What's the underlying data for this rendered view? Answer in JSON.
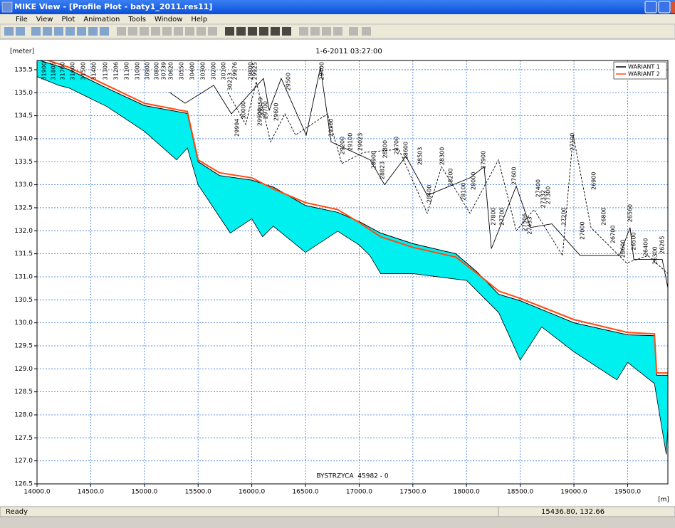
{
  "window": {
    "title": "MIKE View - [Profile Plot - baty1_2011.res11]",
    "menu": [
      "File",
      "View",
      "Plot",
      "Animation",
      "Tools",
      "Window",
      "Help"
    ],
    "status": "Ready",
    "coords": "15436.80, 132.66"
  },
  "chart_data": {
    "type": "line",
    "title": "1-6-2011 03:27:00",
    "ylabel": "[meter]",
    "xlabel": "[m]",
    "annotation": "BYSTRZYCA  45982 - 0",
    "xlim": [
      14000,
      19875
    ],
    "ylim": [
      126.5,
      135.7
    ],
    "xticks": [
      {
        "value": 14000,
        "label": "14000.0"
      },
      {
        "value": 14500,
        "label": "14500.0"
      },
      {
        "value": 15000,
        "label": "15000.0"
      },
      {
        "value": 15500,
        "label": "15500.0"
      },
      {
        "value": 16000,
        "label": "16000.0"
      },
      {
        "value": 16500,
        "label": "16500.0"
      },
      {
        "value": 17000,
        "label": "17000.0"
      },
      {
        "value": 17500,
        "label": "17500.0"
      },
      {
        "value": 18000,
        "label": "18000.0"
      },
      {
        "value": 18500,
        "label": "18500.0"
      },
      {
        "value": 19000,
        "label": "19000.0"
      },
      {
        "value": 19500,
        "label": "19500.0"
      }
    ],
    "yticks": [
      {
        "value": 126.5,
        "label": "126.5"
      },
      {
        "value": 127,
        "label": "127.0"
      },
      127.5,
      {
        "value": 128,
        "label": "128.0"
      },
      128.5,
      {
        "value": 129,
        "label": "129.0"
      },
      129.5,
      {
        "value": 130,
        "label": "130.0"
      },
      130.5,
      {
        "value": 131,
        "label": "131.0"
      },
      131.5,
      {
        "value": 132,
        "label": "132.0"
      },
      132.5,
      {
        "value": 133,
        "label": "133.0"
      },
      133.5,
      {
        "value": 134,
        "label": "134.0"
      },
      134.5,
      {
        "value": 135,
        "label": "135.0"
      },
      135.5
    ],
    "grid": true,
    "legend": "upper right",
    "fill_color": "#00f0f0",
    "series": [
      {
        "name": "WARIANT 1",
        "color": "#000000",
        "x": [
          14000,
          14300,
          14650,
          15000,
          15400,
          15500,
          15700,
          16000,
          16200,
          16500,
          16800,
          17000,
          17200,
          17500,
          17900,
          18100,
          18300,
          18500,
          19000,
          19500,
          19750,
          19770,
          19875
        ],
        "values": [
          135.72,
          135.5,
          135.1,
          134.72,
          134.55,
          133.5,
          133.2,
          133.1,
          132.95,
          132.55,
          132.4,
          132.2,
          131.95,
          131.72,
          131.5,
          131.1,
          130.62,
          130.48,
          130,
          129.74,
          129.72,
          128.86,
          128.86
        ]
      },
      {
        "name": "WARIANT 2",
        "color": "#ff4a10",
        "x": [
          14000,
          14300,
          14650,
          15000,
          15400,
          15500,
          15700,
          16000,
          16200,
          16500,
          16800,
          17000,
          17200,
          17500,
          17900,
          18100,
          18300,
          18500,
          19000,
          19500,
          19750,
          19770,
          19875
        ],
        "values": [
          135.78,
          135.55,
          135.16,
          134.77,
          134.59,
          133.54,
          133.26,
          133.15,
          132.91,
          132.61,
          132.46,
          132.18,
          131.87,
          131.64,
          131.43,
          131.07,
          130.69,
          130.53,
          130.07,
          129.79,
          129.76,
          128.91,
          128.91
        ]
      }
    ],
    "bed": {
      "x": [
        14000,
        14200,
        14300,
        14650,
        15000,
        15300,
        15400,
        15500,
        15800,
        16000,
        16100,
        16200,
        16500,
        16800,
        17000,
        17100,
        17200,
        17500,
        18000,
        18300,
        18500,
        18700,
        19000,
        19400,
        19500,
        19750,
        19860,
        19875
      ],
      "values": [
        135.35,
        135.16,
        135.1,
        134.7,
        134.16,
        133.54,
        133.8,
        133,
        131.95,
        132.26,
        131.87,
        132.1,
        131.53,
        131.99,
        131.69,
        131.46,
        131.07,
        131.07,
        130.92,
        130.22,
        129.19,
        129.91,
        129.37,
        128.76,
        129.14,
        128.68,
        127.14,
        127.75
      ]
    },
    "banks": [
      {
        "dashed": false,
        "x": [
          15233,
          15379,
          15645,
          15810,
          16109,
          16162,
          16274,
          16507,
          16639,
          16739,
          17103,
          17236,
          17435,
          17634,
          18032,
          18164,
          18231,
          18463,
          18595,
          18794,
          19059,
          19424,
          19523,
          19557,
          19822,
          19875
        ],
        "values": [
          135.01,
          134.77,
          135.16,
          134.54,
          135.31,
          134.62,
          135.31,
          134.08,
          135.55,
          133.93,
          133.54,
          133,
          133.62,
          132.77,
          133.15,
          133.39,
          131.61,
          132.97,
          132.07,
          132.15,
          131.46,
          131.46,
          132.07,
          131.38,
          131.38,
          130.76
        ]
      },
      {
        "dashed": true,
        "x": [
          15777,
          15943,
          16042,
          16175,
          16308,
          16407,
          16705,
          16838,
          17037,
          17369,
          17634,
          17767,
          18032,
          18297,
          18463,
          18628,
          18894,
          18993,
          19159,
          19490,
          19689,
          19875
        ],
        "values": [
          135.01,
          134.31,
          135.24,
          133.93,
          134.54,
          134.08,
          134.54,
          133.46,
          133.7,
          133.77,
          132.38,
          133.39,
          132.38,
          133.54,
          132,
          132.46,
          131.46,
          134.08,
          132.07,
          131.3,
          131.46,
          131.07
        ]
      }
    ],
    "section_labels": [
      {
        "label": "31900",
        "x": 14066,
        "y": 135.7
      },
      {
        "label": "31805",
        "x": 14153,
        "y": 135.7
      },
      {
        "label": "31700",
        "x": 14239,
        "y": 135.7
      },
      {
        "label": "31600",
        "x": 14332,
        "y": 135.7
      },
      {
        "label": "31500",
        "x": 14431,
        "y": 135.7
      },
      {
        "label": "31400",
        "x": 14530,
        "y": 135.7
      },
      {
        "label": "31300",
        "x": 14637,
        "y": 135.7
      },
      {
        "label": "31206",
        "x": 14736,
        "y": 135.7
      },
      {
        "label": "31100",
        "x": 14836,
        "y": 135.7
      },
      {
        "label": "31000",
        "x": 14935,
        "y": 135.7
      },
      {
        "label": "30900",
        "x": 15028,
        "y": 135.7
      },
      {
        "label": "30800",
        "x": 15114,
        "y": 135.7
      },
      {
        "label": "30739",
        "x": 15180,
        "y": 135.7
      },
      {
        "label": "30620",
        "x": 15247,
        "y": 135.7
      },
      {
        "label": "30550",
        "x": 15346,
        "y": 135.7
      },
      {
        "label": "30400",
        "x": 15446,
        "y": 135.7
      },
      {
        "label": "30300",
        "x": 15545,
        "y": 135.7
      },
      {
        "label": "30200",
        "x": 15645,
        "y": 135.7
      },
      {
        "label": "30100",
        "x": 15737,
        "y": 135.7
      },
      {
        "label": "30213",
        "x": 15797,
        "y": 135.47
      },
      {
        "label": "29976",
        "x": 15843,
        "y": 135.7
      },
      {
        "label": "29994",
        "x": 15863,
        "y": 134.47
      },
      {
        "label": "30000",
        "x": 15923,
        "y": 134.85
      },
      {
        "label": "29800",
        "x": 15989,
        "y": 135.7
      },
      {
        "label": "29925",
        "x": 16029,
        "y": 135.7
      },
      {
        "label": "29900",
        "x": 16075,
        "y": 134.7
      },
      {
        "label": "29859",
        "x": 16082,
        "y": 134.93
      },
      {
        "label": "29700",
        "x": 16129,
        "y": 134.85
      },
      {
        "label": "29600",
        "x": 16228,
        "y": 134.81
      },
      {
        "label": "29500",
        "x": 16341,
        "y": 135.47
      },
      {
        "label": "29400",
        "x": 16652,
        "y": 135.7
      },
      {
        "label": "29300",
        "x": 16739,
        "y": 134.47
      },
      {
        "label": "29200",
        "x": 16845,
        "y": 134.08
      },
      {
        "label": "29100",
        "x": 16918,
        "y": 134.16
      },
      {
        "label": "29023",
        "x": 17010,
        "y": 134.16
      },
      {
        "label": "28900",
        "x": 17136,
        "y": 133.77
      },
      {
        "label": "28823",
        "x": 17216,
        "y": 133.54
      },
      {
        "label": "28800",
        "x": 17242,
        "y": 134
      },
      {
        "label": "28700",
        "x": 17349,
        "y": 134.08
      },
      {
        "label": "28600",
        "x": 17435,
        "y": 133.97
      },
      {
        "label": "28503",
        "x": 17568,
        "y": 133.85
      },
      {
        "label": "28400",
        "x": 17654,
        "y": 133.03
      },
      {
        "label": "28300",
        "x": 17773,
        "y": 133.85
      },
      {
        "label": "28200",
        "x": 17853,
        "y": 133.39
      },
      {
        "label": "28100",
        "x": 17972,
        "y": 133.08
      },
      {
        "label": "28000",
        "x": 18065,
        "y": 133.31
      },
      {
        "label": "27900",
        "x": 18158,
        "y": 133.77
      },
      {
        "label": "27800",
        "x": 18251,
        "y": 132.54
      },
      {
        "label": "27700",
        "x": 18331,
        "y": 132.54
      },
      {
        "label": "27600",
        "x": 18443,
        "y": 133.42
      },
      {
        "label": "27506",
        "x": 18542,
        "y": 132.41
      },
      {
        "label": "27433",
        "x": 18589,
        "y": 132.34
      },
      {
        "label": "27400",
        "x": 18668,
        "y": 133.15
      },
      {
        "label": "27332",
        "x": 18715,
        "y": 132.92
      },
      {
        "label": "27300",
        "x": 18761,
        "y": 133
      },
      {
        "label": "27200",
        "x": 18907,
        "y": 132.54
      },
      {
        "label": "27100",
        "x": 18987,
        "y": 134.16
      },
      {
        "label": "27000",
        "x": 19080,
        "y": 132.23
      },
      {
        "label": "26900",
        "x": 19186,
        "y": 133.31
      },
      {
        "label": "26800",
        "x": 19278,
        "y": 132.54
      },
      {
        "label": "26700",
        "x": 19365,
        "y": 132.15
      },
      {
        "label": "26600",
        "x": 19457,
        "y": 131.84
      },
      {
        "label": "26560",
        "x": 19523,
        "y": 132.61
      },
      {
        "label": "26500",
        "x": 19557,
        "y": 132
      },
      {
        "label": "26400",
        "x": 19670,
        "y": 131.87
      },
      {
        "label": "26300",
        "x": 19756,
        "y": 131.69
      },
      {
        "label": "26265",
        "x": 19822,
        "y": 131.92
      }
    ]
  }
}
